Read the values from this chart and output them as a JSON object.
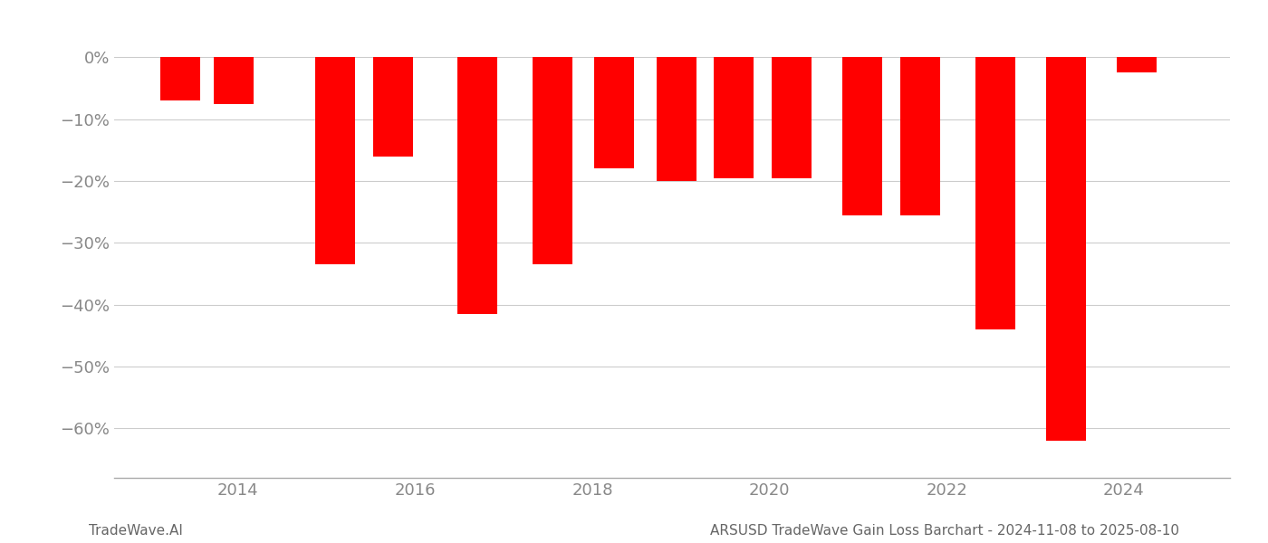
{
  "bar_centers": [
    2013.35,
    2013.95,
    2015.1,
    2015.75,
    2016.7,
    2017.55,
    2018.25,
    2018.95,
    2019.6,
    2020.25,
    2021.05,
    2021.7,
    2022.55,
    2023.35,
    2024.15
  ],
  "values": [
    -7.0,
    -7.5,
    -33.5,
    -16.0,
    -41.5,
    -33.5,
    -18.0,
    -20.0,
    -19.5,
    -19.5,
    -25.5,
    -25.5,
    -44.0,
    -62.0,
    -2.5
  ],
  "bar_width": 0.45,
  "bar_color": "#ff0000",
  "bg_color": "#ffffff",
  "grid_color": "#cccccc",
  "axis_color": "#aaaaaa",
  "tick_color": "#888888",
  "ylabel_values": [
    0,
    -10,
    -20,
    -30,
    -40,
    -50,
    -60
  ],
  "ytick_labels": [
    "0%",
    "−10%",
    "−20%",
    "−30%",
    "−40%",
    "−50%",
    "−60%"
  ],
  "xtick_years": [
    2014,
    2016,
    2018,
    2020,
    2022,
    2024
  ],
  "ylim": [
    -68,
    4
  ],
  "xlim": [
    2012.6,
    2025.2
  ],
  "footer_left": "TradeWave.AI",
  "footer_right": "ARSUSD TradeWave Gain Loss Barchart - 2024-11-08 to 2025-08-10",
  "footer_fontsize": 11,
  "tick_fontsize": 13
}
